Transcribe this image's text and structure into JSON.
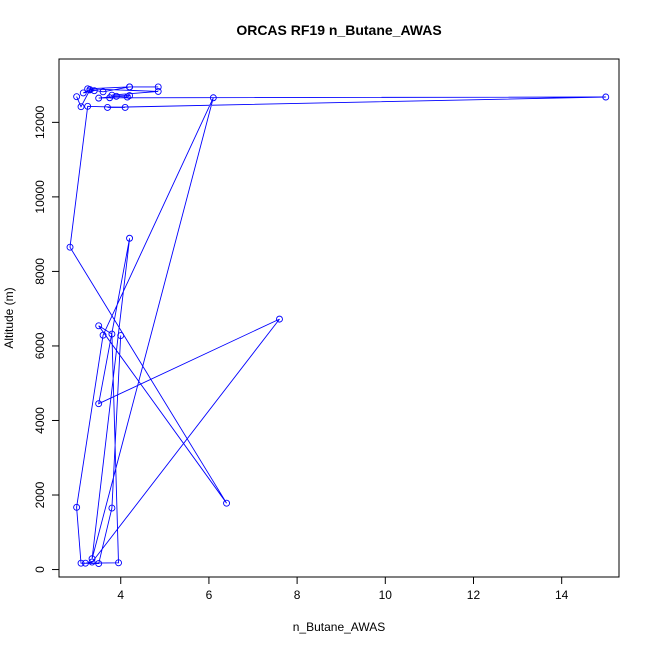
{
  "chart_data": {
    "type": "line",
    "title": "ORCAS RF19 n_Butane_AWAS",
    "xlabel": "n_Butane_AWAS",
    "ylabel": "Altitude (m)",
    "xlim": [
      2.6,
      15.3
    ],
    "ylim": [
      -200,
      13700
    ],
    "xticks": [
      4,
      6,
      8,
      10,
      12,
      14
    ],
    "yticks": [
      0,
      2000,
      4000,
      6000,
      8000,
      10000,
      12000
    ],
    "grid": false,
    "series": [
      {
        "color": "#0000ff",
        "marker": "open-circle",
        "points": [
          [
            3.0,
            12690
          ],
          [
            3.1,
            12420
          ],
          [
            3.3,
            12870
          ],
          [
            3.4,
            12850
          ],
          [
            3.15,
            12790
          ],
          [
            3.3,
            12880
          ],
          [
            3.6,
            12820
          ],
          [
            4.2,
            12950
          ],
          [
            4.85,
            12950
          ],
          [
            4.2,
            12950
          ],
          [
            3.25,
            12900
          ],
          [
            4.85,
            12830
          ],
          [
            3.8,
            12730
          ],
          [
            4.2,
            12720
          ],
          [
            4.15,
            12680
          ],
          [
            3.9,
            12700
          ],
          [
            3.5,
            12650
          ],
          [
            3.75,
            12660
          ],
          [
            15.0,
            12680
          ],
          [
            3.7,
            12400
          ],
          [
            4.1,
            12400
          ],
          [
            3.25,
            12430
          ],
          [
            2.85,
            8650
          ],
          [
            6.4,
            1780
          ],
          [
            3.5,
            6540
          ],
          [
            3.8,
            6320
          ],
          [
            3.95,
            180
          ],
          [
            3.2,
            170
          ],
          [
            3.35,
            200
          ],
          [
            7.6,
            6720
          ],
          [
            3.5,
            4450
          ],
          [
            4.2,
            8890
          ],
          [
            3.35,
            290
          ],
          [
            6.1,
            12660
          ],
          [
            3.6,
            6290
          ],
          [
            3.0,
            1670
          ],
          [
            3.1,
            170
          ],
          [
            3.5,
            160
          ],
          [
            3.8,
            1650
          ],
          [
            4.0,
            6280
          ]
        ]
      }
    ]
  }
}
